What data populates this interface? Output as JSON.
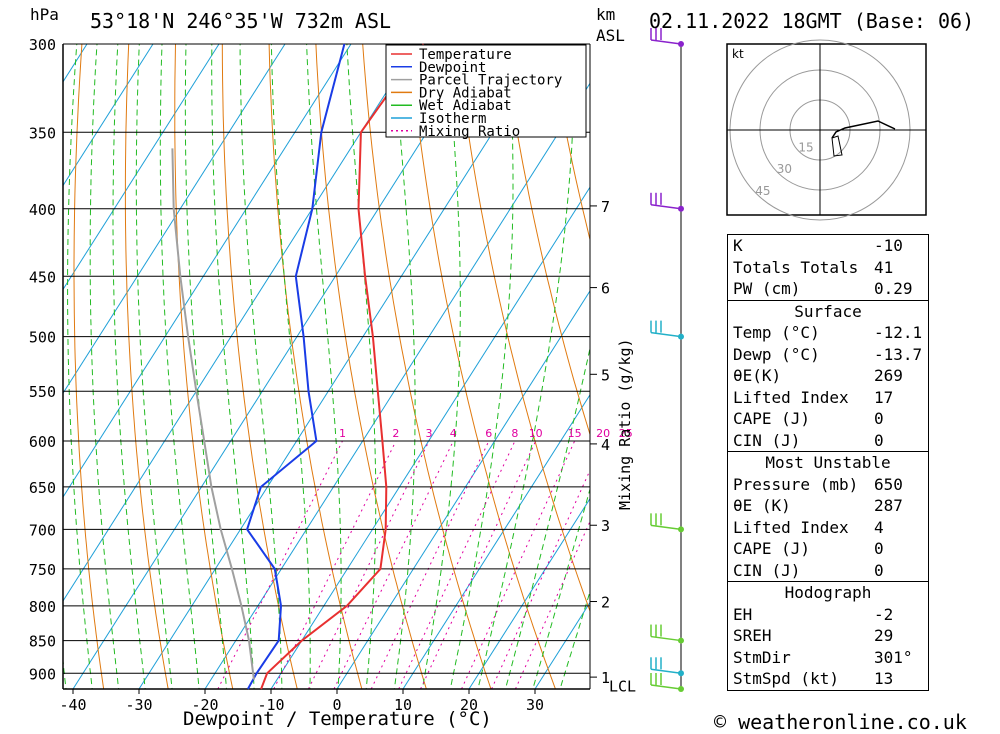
{
  "header": {
    "location": "53°18'N  246°35'W  732m  ASL",
    "datetime": "02.11.2022  18GMT  (Base: 06)",
    "unit_hpa": "hPa",
    "unit_km": "km",
    "unit_asl": "ASL"
  },
  "footer": {
    "copyright": "© weatheronline.co.uk"
  },
  "colors": {
    "temperature": "#e83030",
    "dewpoint": "#1a3ce6",
    "parcel": "#a0a0a0",
    "dry_adiabat": "#e07a10",
    "wet_adiabat": "#22bb22",
    "isotherm": "#1fa0d8",
    "mixing_ratio": "#e000a0",
    "wind_purple": "#8a22cc",
    "wind_cyan": "#22b0c8",
    "wind_green": "#66cc33"
  },
  "chart_data": {
    "type": "line",
    "title": "",
    "xlabel": "Dewpoint / Temperature (°C)",
    "ylabel": "hPa",
    "y_scale": "log-pressure (inverted)",
    "xlim": [
      -42,
      38
    ],
    "ylim": [
      925,
      300
    ],
    "x_ticks": [
      -40,
      -30,
      -20,
      -10,
      0,
      10,
      20,
      30
    ],
    "pressure_ticks": [
      300,
      350,
      400,
      450,
      500,
      550,
      600,
      650,
      700,
      750,
      800,
      850,
      900
    ],
    "height_ticks": [
      {
        "km": "7",
        "p": 398
      },
      {
        "km": "6",
        "p": 459
      },
      {
        "km": "5",
        "p": 534
      },
      {
        "km": "4",
        "p": 603
      },
      {
        "km": "3",
        "p": 695
      },
      {
        "km": "2",
        "p": 794
      },
      {
        "km": "1",
        "p": 906
      }
    ],
    "lcl": {
      "label": "LCL",
      "p": 910
    },
    "mixing_ratio_label": "Mixing Ratio (g/kg)",
    "mixing_ratio_values": [
      "1",
      "2",
      "3",
      "4",
      "6",
      "8",
      "10",
      "15",
      "20",
      "25"
    ],
    "legend": {
      "placement": "top-center",
      "entries": [
        "Temperature",
        "Dewpoint",
        "Parcel Trajectory",
        "Dry Adiabat",
        "Wet Adiabat",
        "Isotherm",
        "Mixing Ratio"
      ]
    },
    "series": [
      {
        "name": "Temperature",
        "points": [
          [
            925,
            -11.5
          ],
          [
            900,
            -12.1
          ],
          [
            850,
            -10
          ],
          [
            800,
            -6.5
          ],
          [
            750,
            -5
          ],
          [
            700,
            -8
          ],
          [
            650,
            -12
          ],
          [
            600,
            -17
          ],
          [
            550,
            -22.5
          ],
          [
            500,
            -28.5
          ],
          [
            450,
            -35.5
          ],
          [
            400,
            -43
          ],
          [
            350,
            -50
          ],
          [
            300,
            -49
          ]
        ]
      },
      {
        "name": "Dewpoint",
        "points": [
          [
            925,
            -13.5
          ],
          [
            900,
            -13.7
          ],
          [
            850,
            -13.5
          ],
          [
            800,
            -16.5
          ],
          [
            750,
            -21
          ],
          [
            700,
            -29
          ],
          [
            650,
            -31
          ],
          [
            600,
            -27
          ],
          [
            550,
            -33
          ],
          [
            500,
            -39
          ],
          [
            450,
            -46
          ],
          [
            400,
            -50
          ],
          [
            350,
            -56
          ],
          [
            300,
            -61
          ]
        ]
      },
      {
        "name": "Parcel Trajectory",
        "points": [
          [
            910,
            -13.5
          ],
          [
            850,
            -18
          ],
          [
            800,
            -22.5
          ],
          [
            750,
            -27.5
          ],
          [
            700,
            -33
          ],
          [
            650,
            -38.5
          ],
          [
            600,
            -44
          ],
          [
            550,
            -50
          ],
          [
            500,
            -56.5
          ],
          [
            450,
            -63.5
          ],
          [
            400,
            -71
          ],
          [
            360,
            -77
          ]
        ]
      }
    ],
    "wind_barbs": [
      {
        "p": 300,
        "color": "purple"
      },
      {
        "p": 400,
        "color": "purple"
      },
      {
        "p": 500,
        "color": "cyan"
      },
      {
        "p": 700,
        "color": "green"
      },
      {
        "p": 850,
        "color": "green"
      },
      {
        "p": 900,
        "color": "cyan"
      },
      {
        "p": 925,
        "color": "green"
      }
    ],
    "hodograph": {
      "unit": "kt",
      "ring_labels": [
        "15",
        "30",
        "45"
      ]
    }
  },
  "indices": {
    "general": [
      {
        "label": "K",
        "value": "-10"
      },
      {
        "label": "Totals Totals",
        "value": "41"
      },
      {
        "label": "PW (cm)",
        "value": "0.29"
      }
    ],
    "surface": {
      "title": "Surface",
      "rows": [
        {
          "label": "Temp (°C)",
          "value": "-12.1"
        },
        {
          "label": "Dewp (°C)",
          "value": "-13.7"
        },
        {
          "label": "θE(K)",
          "value": "269"
        },
        {
          "label": "Lifted Index",
          "value": "17"
        },
        {
          "label": "CAPE (J)",
          "value": "0"
        },
        {
          "label": "CIN (J)",
          "value": "0"
        }
      ]
    },
    "most_unstable": {
      "title": "Most Unstable",
      "rows": [
        {
          "label": "Pressure (mb)",
          "value": "650"
        },
        {
          "label": "θE (K)",
          "value": "287"
        },
        {
          "label": "Lifted Index",
          "value": "4"
        },
        {
          "label": "CAPE (J)",
          "value": "0"
        },
        {
          "label": "CIN (J)",
          "value": "0"
        }
      ]
    },
    "hodograph_box": {
      "title": "Hodograph",
      "rows": [
        {
          "label": "EH",
          "value": "-2"
        },
        {
          "label": "SREH",
          "value": "29"
        },
        {
          "label": "StmDir",
          "value": "301°"
        },
        {
          "label": "StmSpd (kt)",
          "value": "13"
        }
      ]
    }
  }
}
